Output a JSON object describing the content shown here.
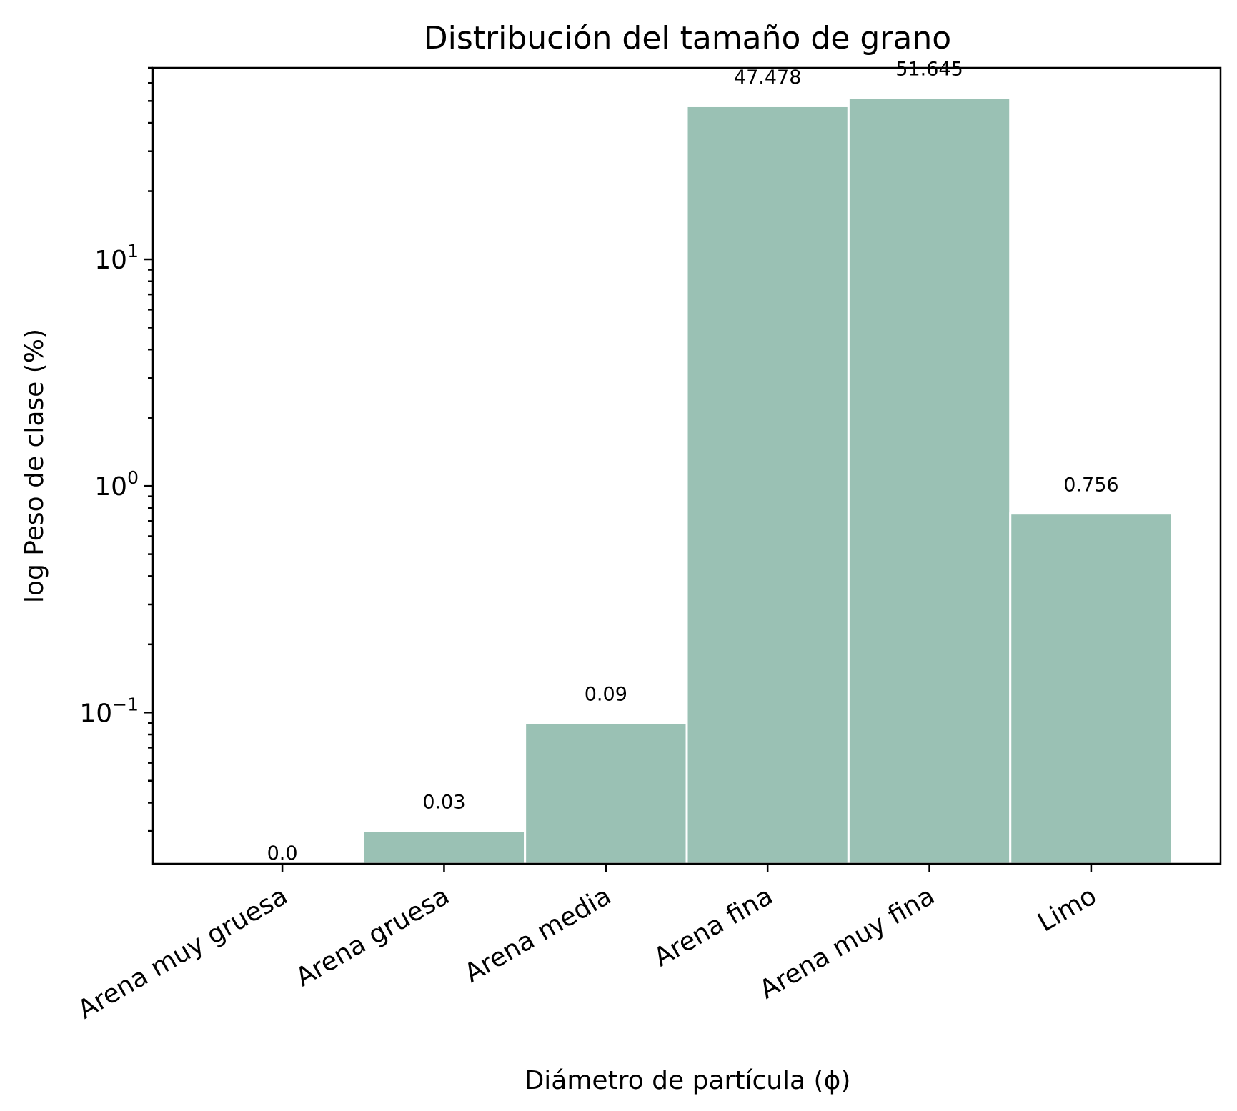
{
  "chart_data": {
    "type": "bar",
    "title": "Distribución del tamaño de grano",
    "xlabel": "Diámetro de partícula (ϕ)",
    "ylabel": "log Peso de clase (%)",
    "y_scale": "log",
    "ylim": [
      0.0215,
      70
    ],
    "categories": [
      "Arena muy gruesa",
      "Arena gruesa",
      "Arena media",
      "Arena fina",
      "Arena muy fina",
      "Limo"
    ],
    "values": [
      0.0,
      0.03,
      0.09,
      47.478,
      51.645,
      0.756
    ],
    "data_labels": [
      "0.0",
      "0.03",
      "0.09",
      "47.478",
      "51.645",
      "0.756"
    ],
    "y_ticks": [
      {
        "value": 0.1,
        "base": "10",
        "exp": "−1"
      },
      {
        "value": 1,
        "base": "10",
        "exp": "0"
      },
      {
        "value": 10,
        "base": "10",
        "exp": "1"
      }
    ],
    "bar_color": "#9ac1b4",
    "grid": false,
    "legend": "none"
  }
}
